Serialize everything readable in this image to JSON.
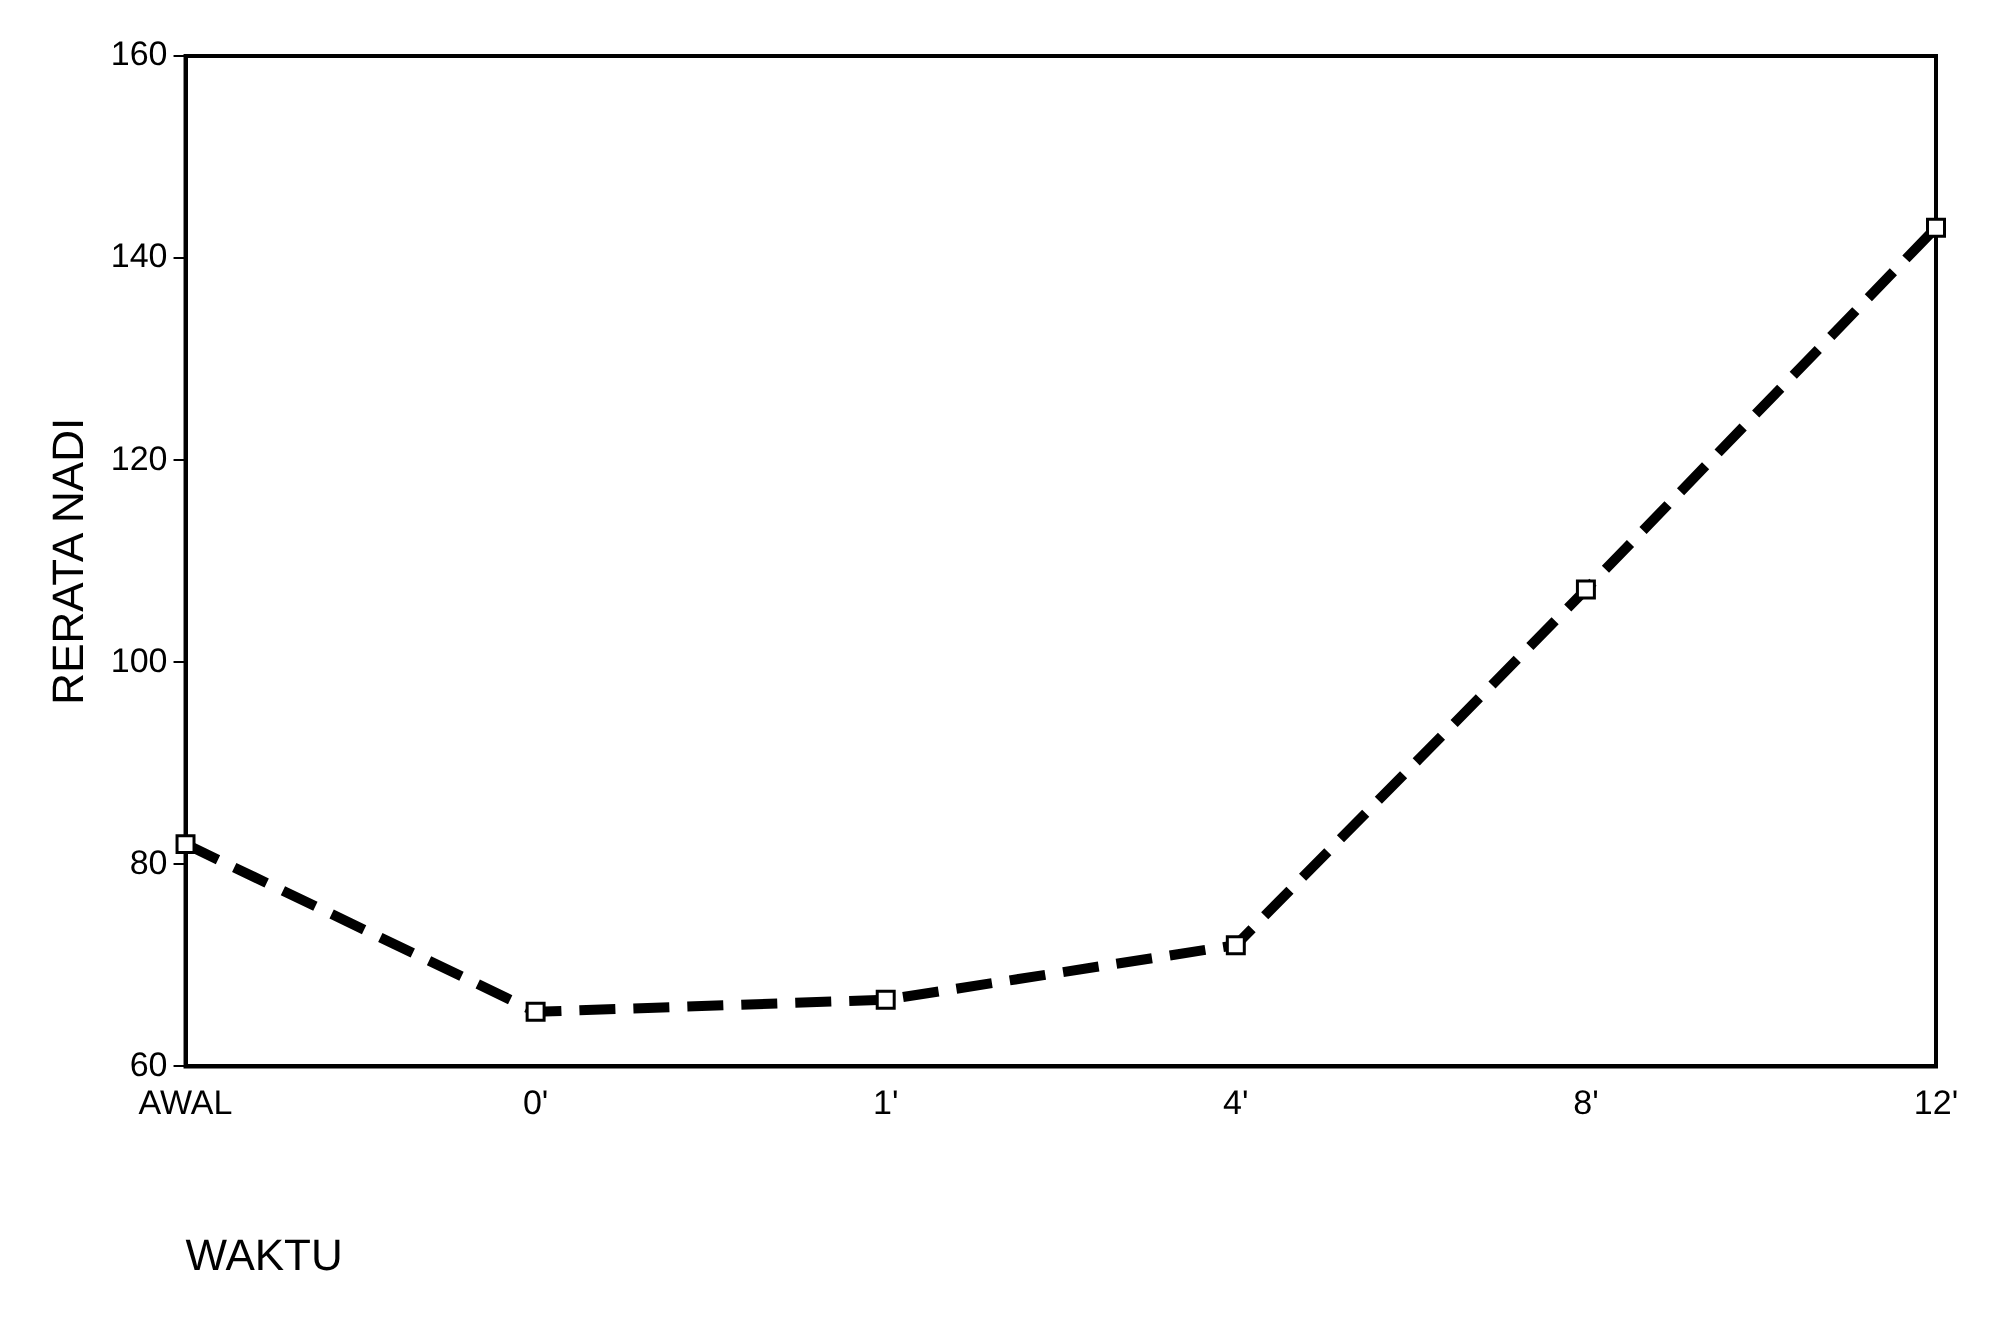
{
  "chart_data": {
    "type": "line",
    "xlabel": "WAKTU",
    "ylabel": "RERATA NADI",
    "categories": [
      "AWAL",
      "0'",
      "1'",
      "4'",
      "8'",
      "12'"
    ],
    "series": [
      {
        "color": "#000000",
        "values": [
          82,
          65.4,
          66.6,
          72,
          107.2,
          143
        ]
      }
    ],
    "ylim": [
      60,
      160
    ],
    "yticks": [
      60,
      80,
      100,
      120,
      140,
      160
    ],
    "grid": false,
    "legend": false,
    "marker": "square",
    "line_style": "dashed"
  }
}
